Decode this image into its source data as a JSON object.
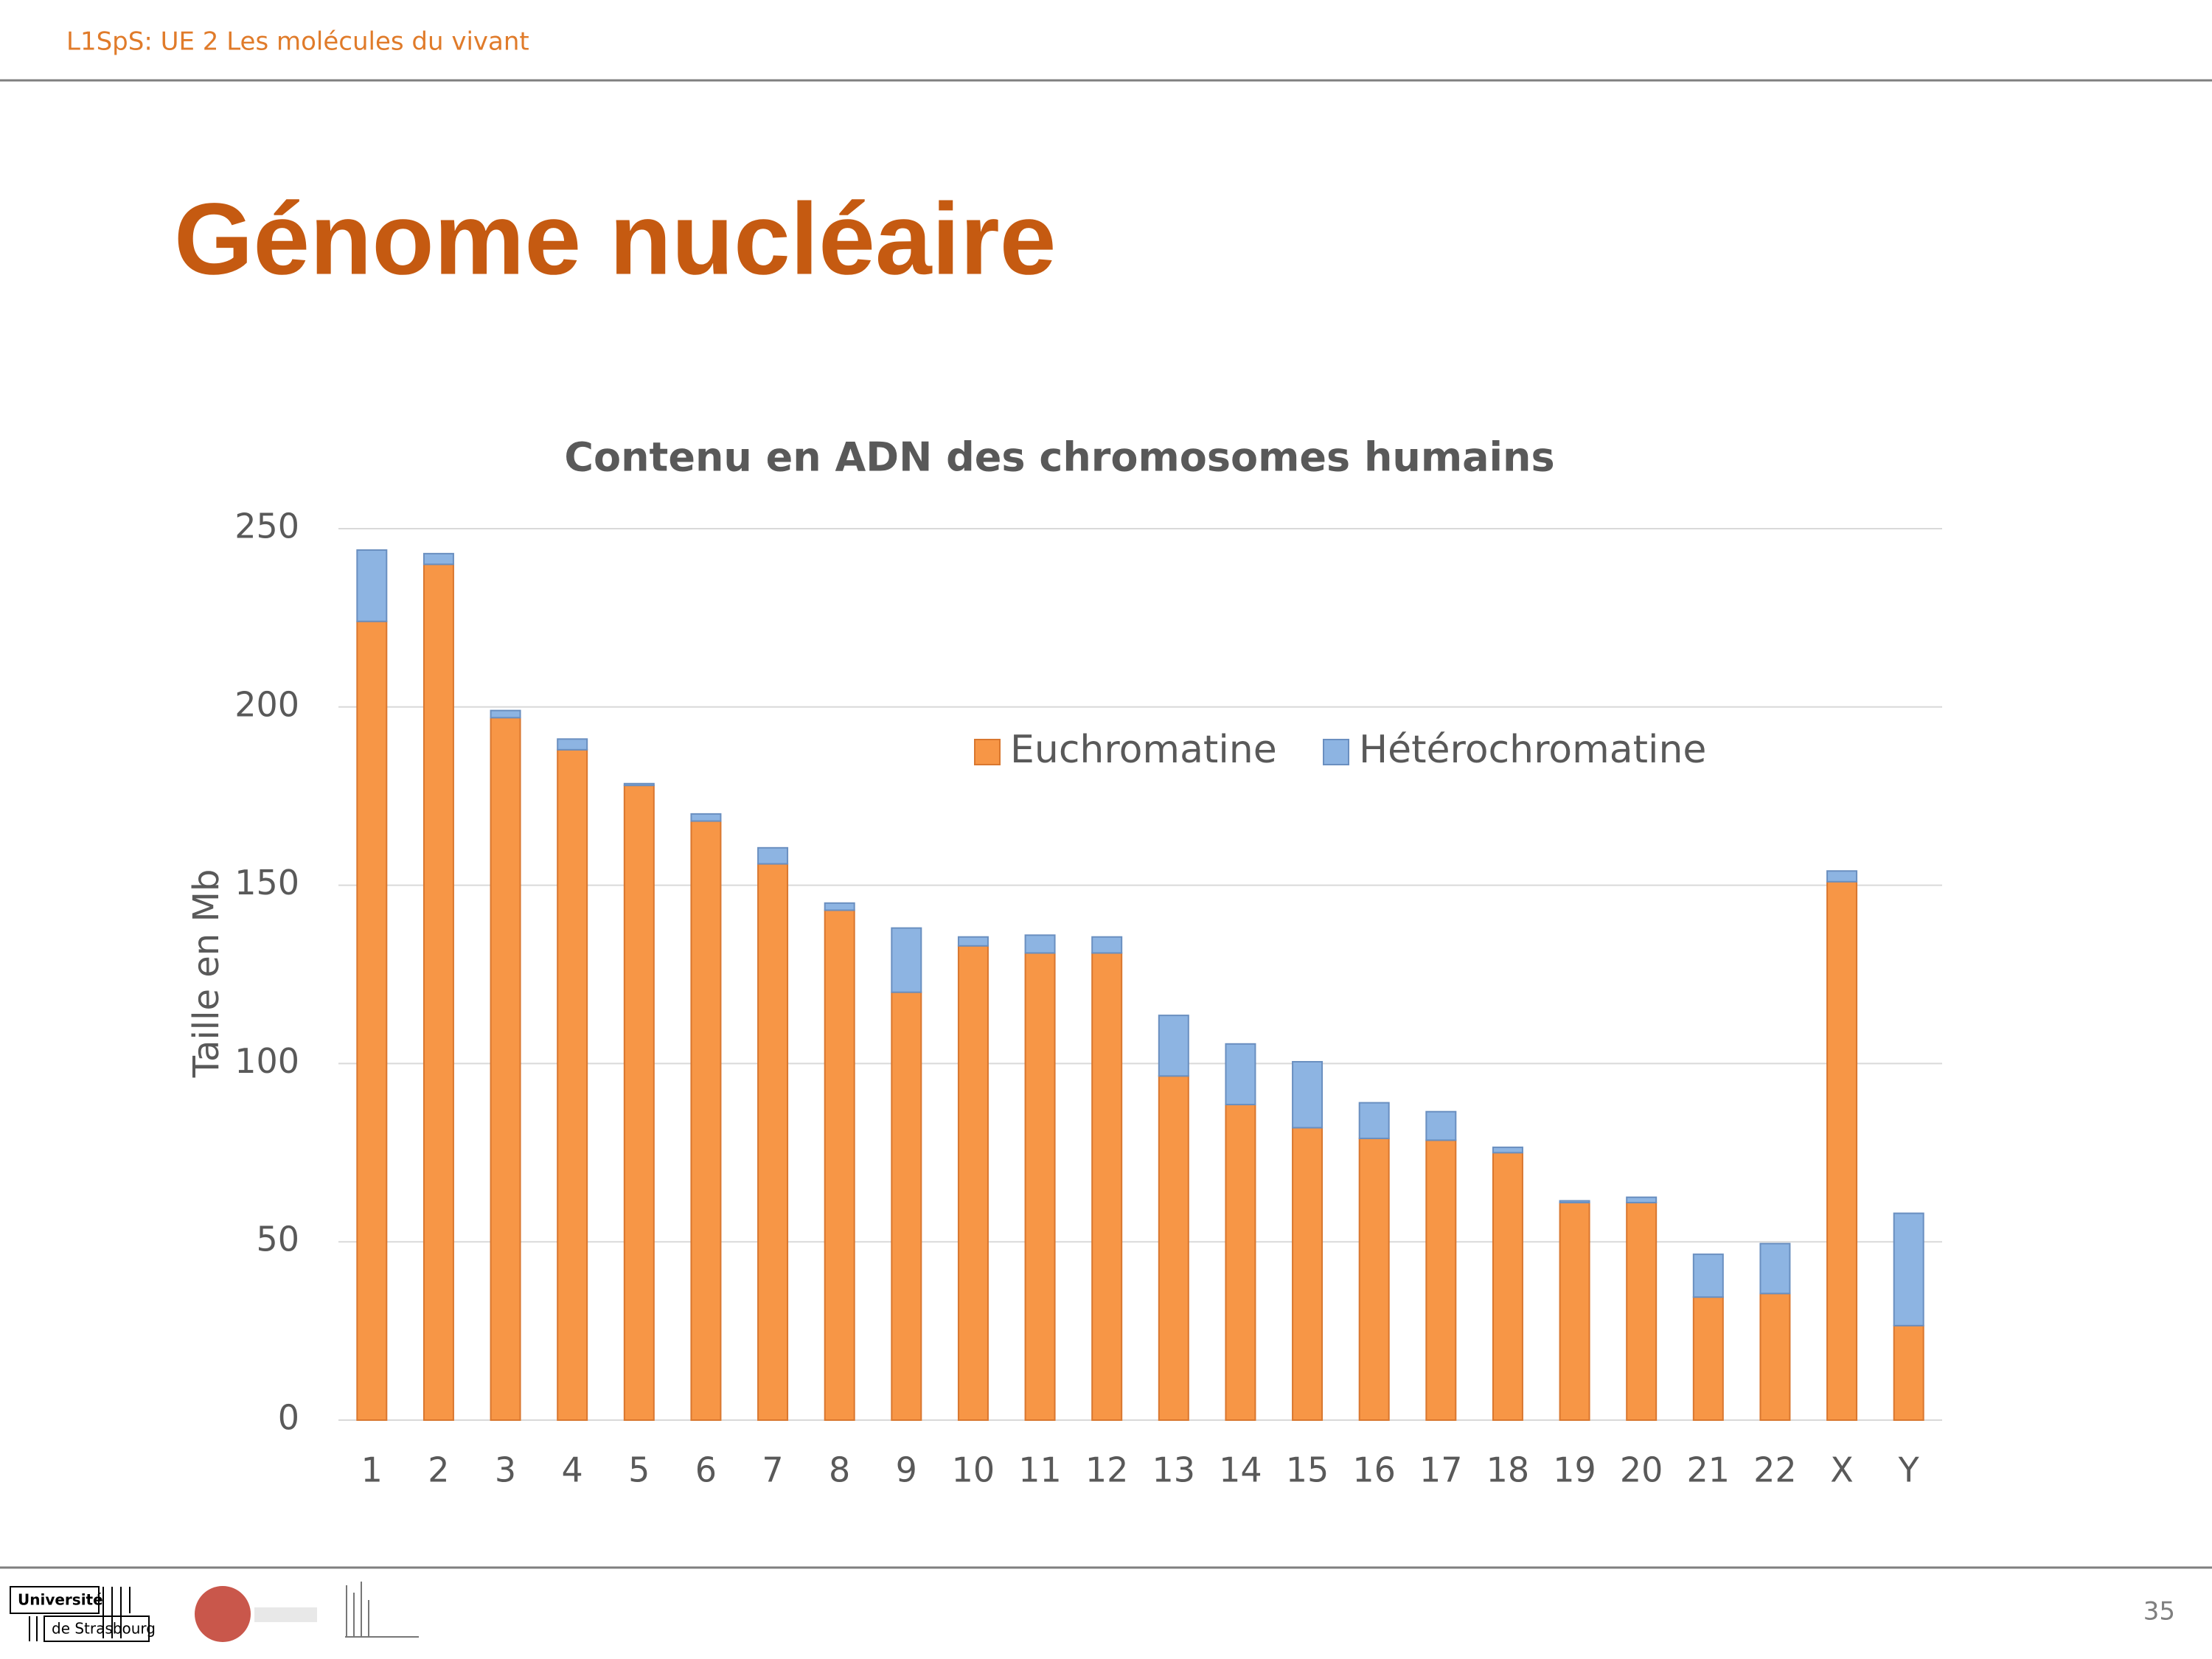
{
  "header": {
    "course": "L1SpS: UE 2 Les molécules du vivant"
  },
  "slide_title": "Génome nucléaire",
  "chart_data": {
    "type": "stacked_bar",
    "title": "Contenu en ADN des chromosomes humains",
    "y_label": "Taille en Mb",
    "categories": [
      "1",
      "2",
      "3",
      "4",
      "5",
      "6",
      "7",
      "8",
      "9",
      "10",
      "11",
      "12",
      "13",
      "14",
      "15",
      "16",
      "17",
      "18",
      "19",
      "20",
      "21",
      "22",
      "X",
      "Y"
    ],
    "series": [
      {
        "name": "Euchromatine",
        "color": "#f79646",
        "values": [
          224,
          240,
          197,
          188,
          178,
          168,
          156,
          143,
          120,
          133,
          131,
          131,
          96.5,
          88.5,
          82,
          79,
          78.5,
          75,
          61,
          61,
          34.5,
          35.5,
          151,
          26.5
        ]
      },
      {
        "name": "Hétérochromatine",
        "color": "#8db4e2",
        "values": [
          20,
          3,
          2,
          3,
          0.5,
          2,
          4.5,
          2,
          18,
          2.5,
          5,
          4.5,
          17,
          17,
          18.5,
          10,
          8,
          1.5,
          0.5,
          1.5,
          12,
          14,
          3,
          31.5
        ]
      }
    ],
    "ylim": [
      0,
      250
    ],
    "yticks": [
      0,
      50,
      100,
      150,
      200,
      250
    ],
    "grid": true,
    "legend": "top-right"
  },
  "footer": {
    "logo_line1": "Université",
    "logo_line2": "de Strasbourg",
    "page_number": "35"
  }
}
